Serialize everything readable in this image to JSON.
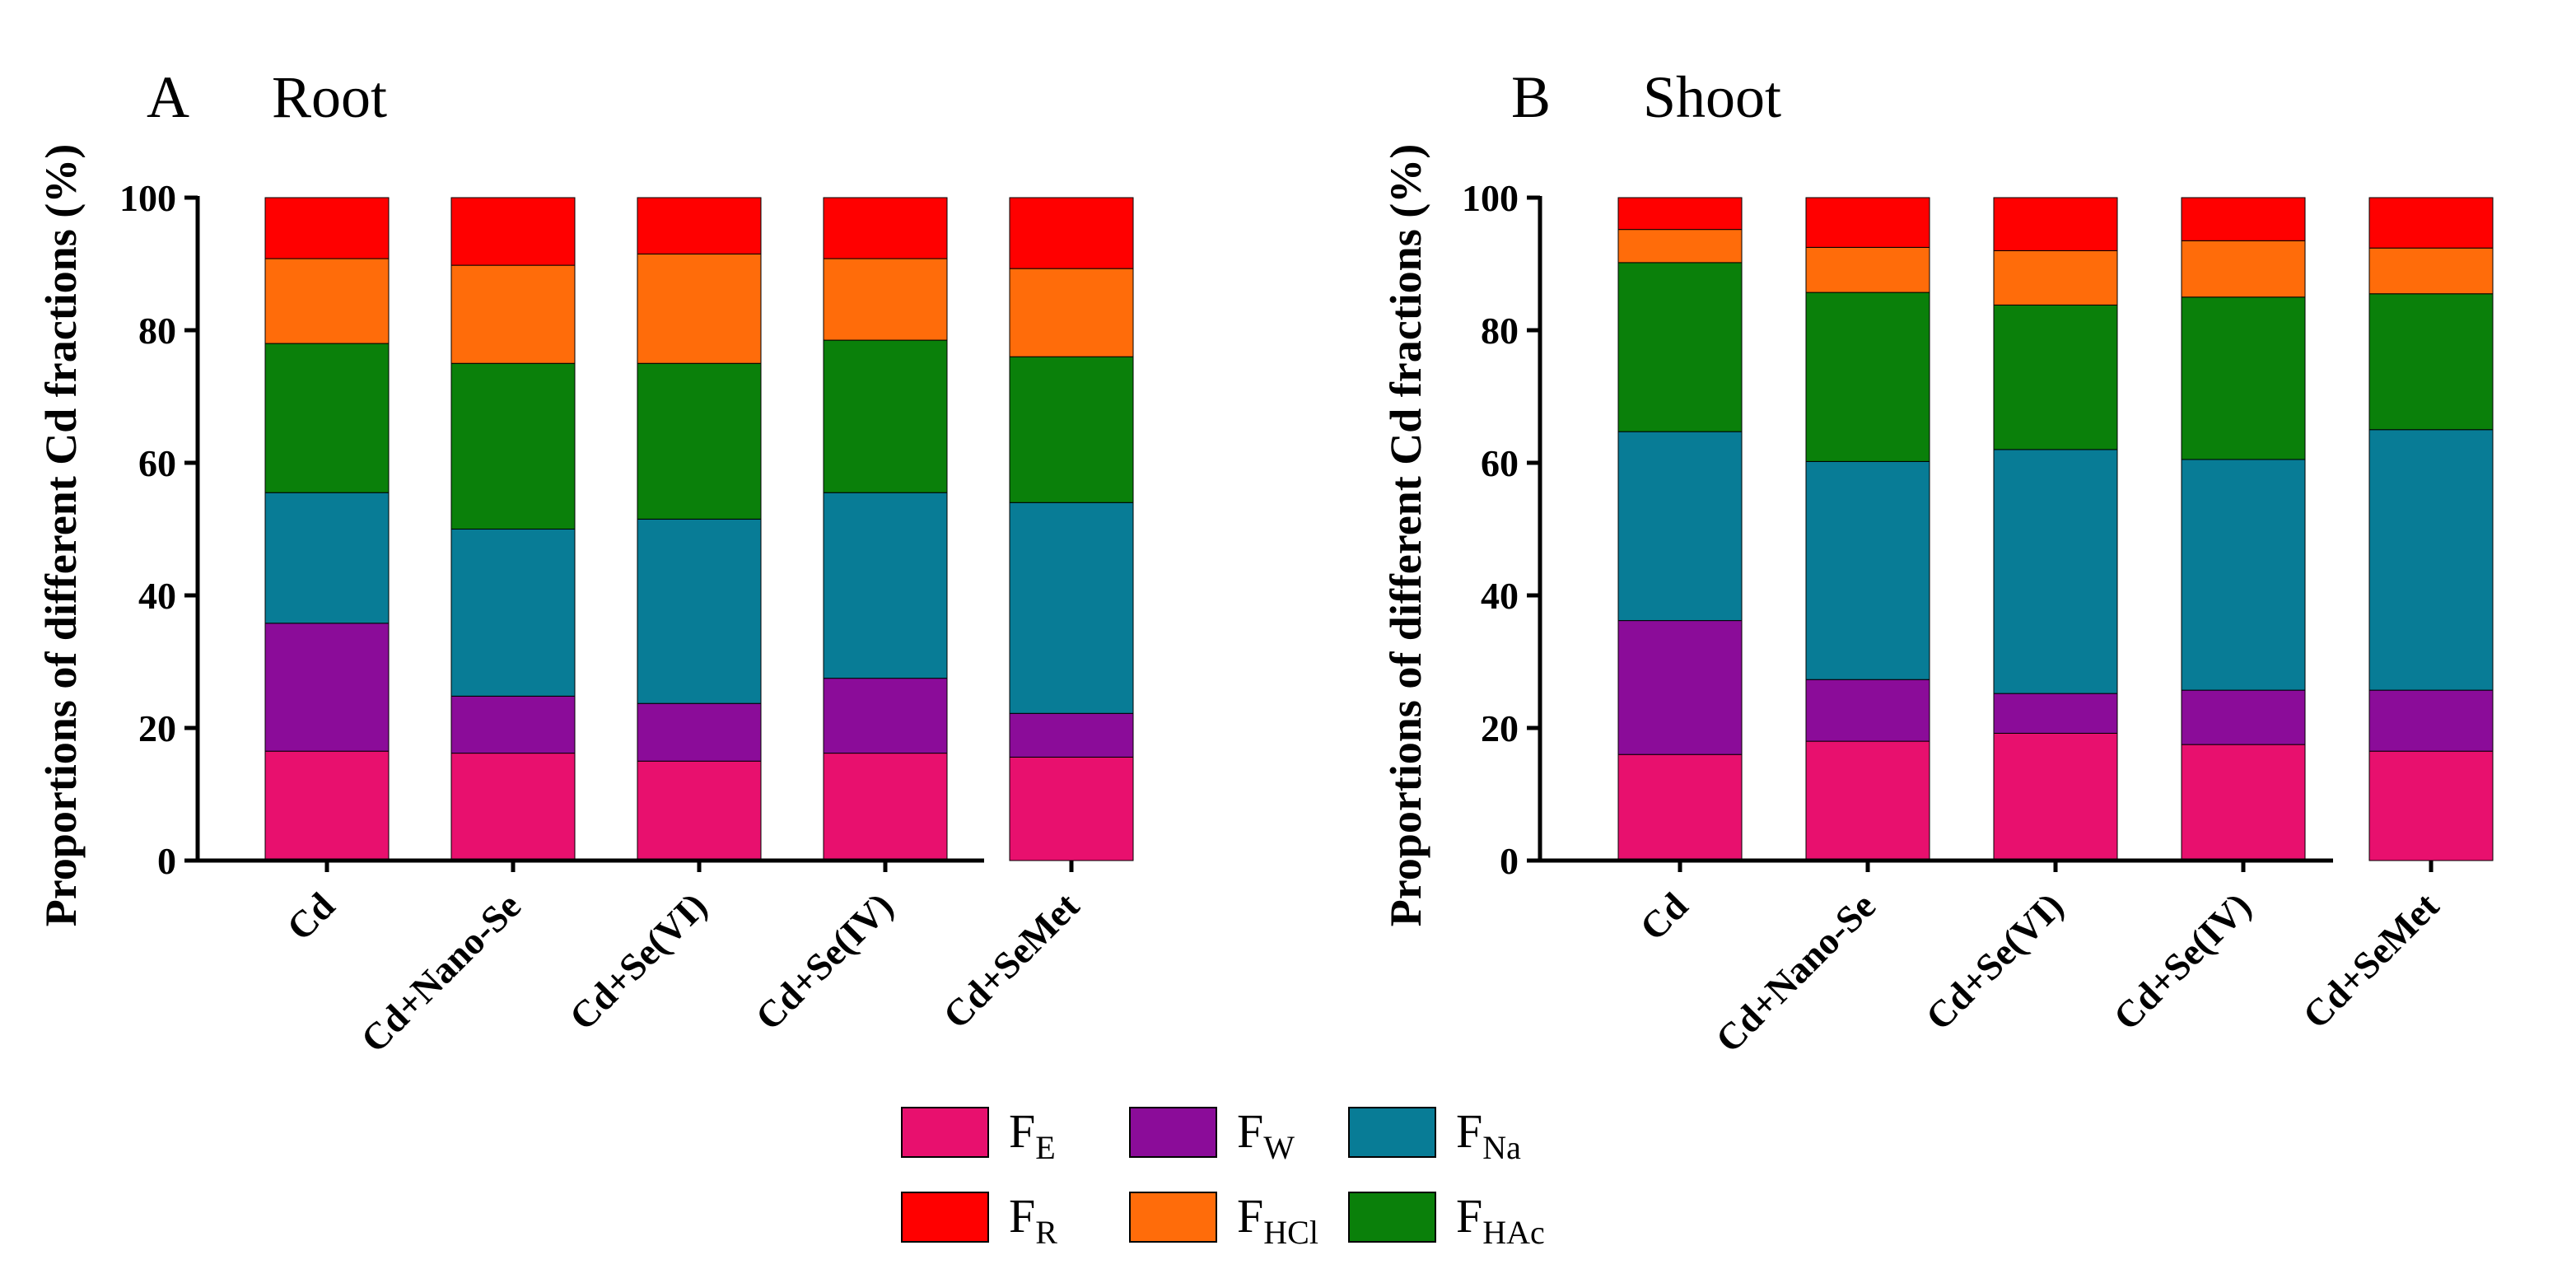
{
  "legend": [
    {
      "key": "FE",
      "main": "F",
      "sub": "E",
      "color": "#E8106E"
    },
    {
      "key": "FW",
      "main": "F",
      "sub": "W",
      "color": "#8B0C99"
    },
    {
      "key": "FNa",
      "main": "F",
      "sub": "Na",
      "color": "#087C96"
    },
    {
      "key": "FR",
      "main": "F",
      "sub": "R",
      "color": "#FF0000"
    },
    {
      "key": "FHCl",
      "main": "F",
      "sub": "HCl",
      "color": "#FF6C0A"
    },
    {
      "key": "FHAc",
      "main": "F",
      "sub": "HAc",
      "color": "#0A800A"
    }
  ],
  "chart_data": [
    {
      "type": "bar",
      "stacked": true,
      "panel": "A",
      "title": "Root",
      "ylabel": "Proportions of different Cd fractions (%)",
      "ylim": [
        0,
        100
      ],
      "yticks": [
        0,
        20,
        40,
        60,
        80,
        100
      ],
      "categories": [
        "Cd",
        "Cd+Nano-Se",
        "Cd+Se(VI)",
        "Cd+Se(IV)",
        "Cd+SeMet"
      ],
      "series": [
        {
          "name": "FE",
          "values": [
            16.5,
            16.2,
            15.0,
            16.2,
            15.6
          ]
        },
        {
          "name": "FW",
          "values": [
            19.3,
            8.6,
            8.7,
            11.3,
            6.6
          ]
        },
        {
          "name": "FNa",
          "values": [
            19.7,
            25.2,
            27.8,
            28.0,
            31.8
          ]
        },
        {
          "name": "FHAc",
          "values": [
            22.5,
            25.0,
            23.5,
            23.0,
            22.0
          ]
        },
        {
          "name": "FHCl",
          "values": [
            12.8,
            14.8,
            16.5,
            12.3,
            13.3
          ]
        },
        {
          "name": "FR",
          "values": [
            9.2,
            10.2,
            8.5,
            9.2,
            10.7
          ]
        }
      ]
    },
    {
      "type": "bar",
      "stacked": true,
      "panel": "B",
      "title": "Shoot",
      "ylabel": "Proportions of different Cd fractions (%)",
      "ylim": [
        0,
        100
      ],
      "yticks": [
        0,
        20,
        40,
        60,
        80,
        100
      ],
      "categories": [
        "Cd",
        "Cd+Nano-Se",
        "Cd+Se(VI)",
        "Cd+Se(IV)",
        "Cd+SeMet"
      ],
      "series": [
        {
          "name": "FE",
          "values": [
            16.0,
            18.0,
            19.2,
            17.5,
            16.5
          ]
        },
        {
          "name": "FW",
          "values": [
            20.2,
            9.3,
            6.0,
            8.2,
            9.2
          ]
        },
        {
          "name": "FNa",
          "values": [
            28.5,
            32.9,
            36.8,
            34.8,
            39.3
          ]
        },
        {
          "name": "FHAc",
          "values": [
            25.5,
            25.5,
            21.8,
            24.5,
            20.5
          ]
        },
        {
          "name": "FHCl",
          "values": [
            5.0,
            6.8,
            8.2,
            8.5,
            6.9
          ]
        },
        {
          "name": "FR",
          "values": [
            4.8,
            7.5,
            8.0,
            6.5,
            7.6
          ]
        }
      ]
    }
  ]
}
